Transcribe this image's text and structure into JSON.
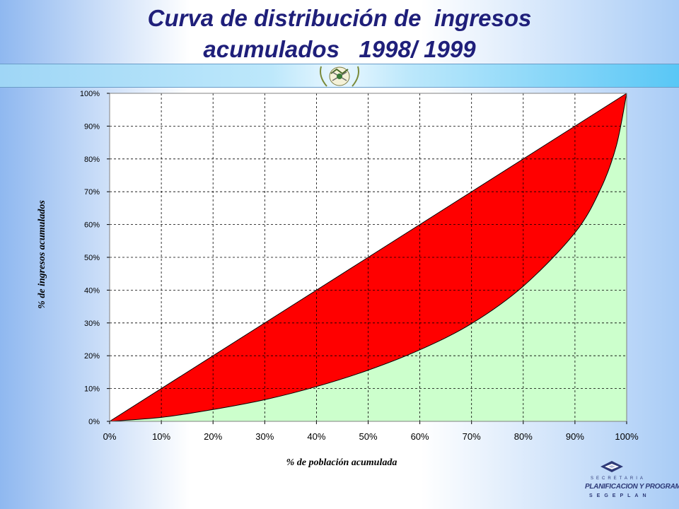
{
  "title_line1": "Curva de distribución de  ingresos",
  "title_line2": "acumulados   1998/ 1999",
  "logo": {
    "line1": "SECRETARIA",
    "line2": "PLANIFICACION Y PROGRAMACION",
    "line3": "SEGEPLAN"
  },
  "colors": {
    "title": "#1f1f7a",
    "inequality_area": "#ff0000",
    "income_area": "#ccffcc",
    "grid": "#000000"
  },
  "icons": {
    "seal": "guatemala-coat-of-arms-icon",
    "logo": "segeplan-logo-icon"
  },
  "chart_data": {
    "type": "area",
    "xlabel": "% de población acumulada",
    "ylabel": "% de ingresos acumulados",
    "xlim": [
      0,
      100
    ],
    "ylim": [
      0,
      100
    ],
    "x_ticks": [
      "0%",
      "10%",
      "20%",
      "30%",
      "40%",
      "50%",
      "60%",
      "70%",
      "80%",
      "90%",
      "100%"
    ],
    "y_ticks": [
      "0%",
      "10%",
      "20%",
      "30%",
      "40%",
      "50%",
      "60%",
      "70%",
      "80%",
      "90%",
      "100%"
    ],
    "grid": true,
    "series": [
      {
        "type": "equality_line",
        "x": [
          0,
          100
        ],
        "y": [
          0,
          100
        ]
      },
      {
        "type": "lorenz_curve",
        "x": [
          0,
          10,
          20,
          30,
          40,
          50,
          60,
          70,
          80,
          90,
          95,
          98,
          100
        ],
        "y": [
          0,
          1.2,
          3.6,
          6.6,
          10.6,
          15.6,
          21.8,
          29.8,
          41.2,
          57.5,
          71,
          84,
          100
        ]
      }
    ]
  }
}
